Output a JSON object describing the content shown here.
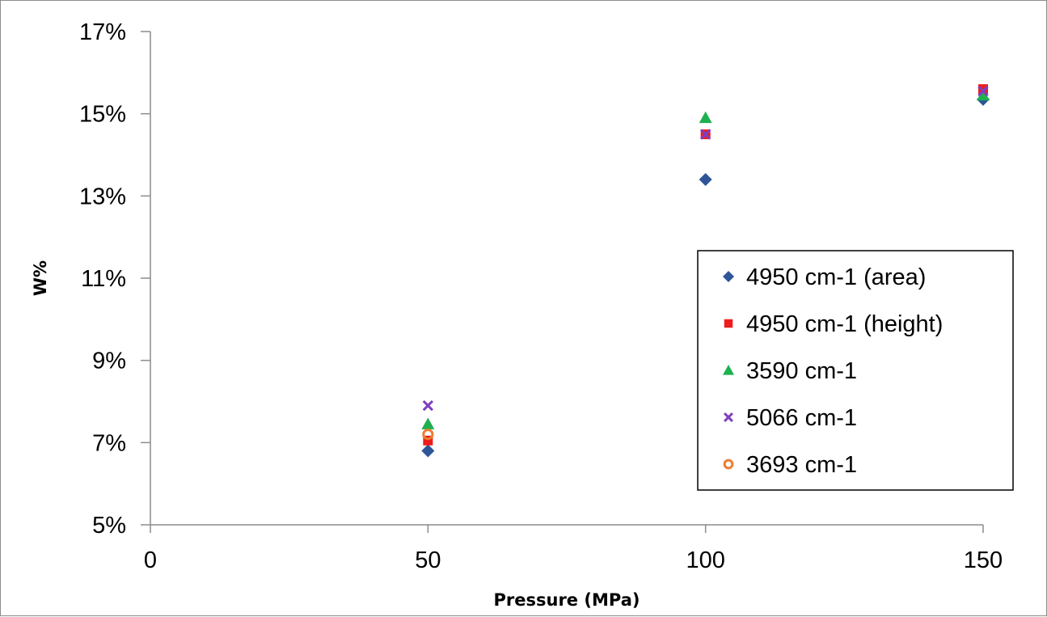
{
  "chart_data": {
    "type": "scatter",
    "title": "",
    "xlabel": "Pressure (MPa)",
    "ylabel": "W%",
    "xlim": [
      0,
      150
    ],
    "ylim": [
      5,
      17
    ],
    "x_ticks": [
      "0",
      "50",
      "100",
      "150"
    ],
    "y_ticks": [
      "5%",
      "7%",
      "9%",
      "11%",
      "13%",
      "15%",
      "17%"
    ],
    "grid": false,
    "legend_position": "right",
    "series": [
      {
        "name": "4950 cm-1 (area)",
        "marker": "diamond",
        "color": "#2E5597",
        "points": [
          {
            "x": 50,
            "y": 6.8
          },
          {
            "x": 100,
            "y": 13.4
          },
          {
            "x": 150,
            "y": 15.35
          }
        ]
      },
      {
        "name": "4950 cm-1 (height)",
        "marker": "square",
        "color": "#EE1C1C",
        "points": [
          {
            "x": 50,
            "y": 7.05
          },
          {
            "x": 100,
            "y": 14.5
          },
          {
            "x": 150,
            "y": 15.6
          }
        ]
      },
      {
        "name": "3590 cm-1",
        "marker": "triangle",
        "color": "#1FB050",
        "points": [
          {
            "x": 50,
            "y": 7.45
          },
          {
            "x": 100,
            "y": 14.9
          },
          {
            "x": 150,
            "y": 15.45
          }
        ]
      },
      {
        "name": "5066 cm-1",
        "marker": "x",
        "color": "#7F3FBF",
        "points": [
          {
            "x": 50,
            "y": 7.9
          },
          {
            "x": 100,
            "y": 14.5
          },
          {
            "x": 150,
            "y": 15.55
          }
        ]
      },
      {
        "name": "3693 cm-1",
        "marker": "circle",
        "color": "#ED7D31",
        "points": [
          {
            "x": 50,
            "y": 7.2
          }
        ]
      }
    ]
  }
}
